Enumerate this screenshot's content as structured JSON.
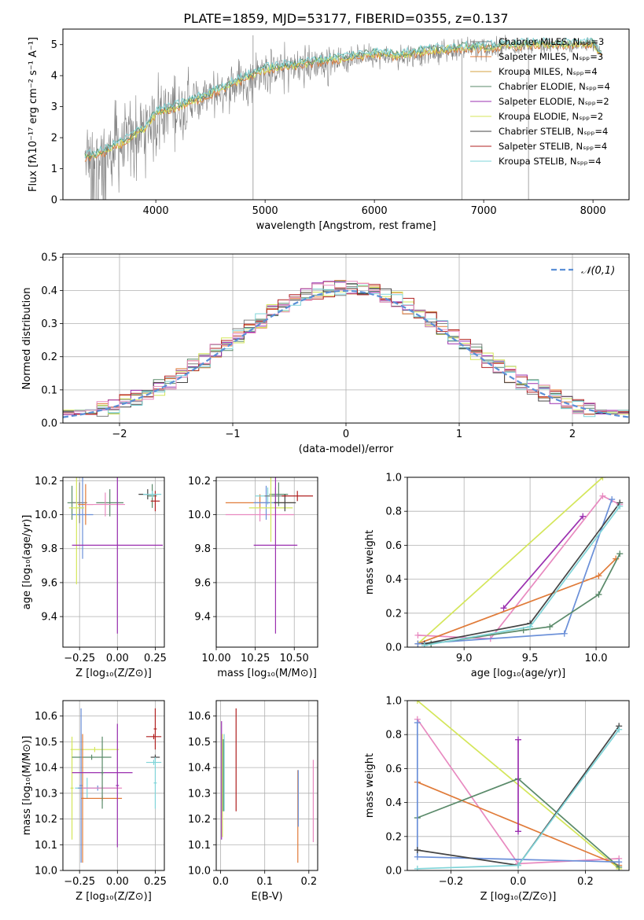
{
  "figure": {
    "title": "PLATE=1859, MJD=53177, FIBERID=0355, z=0.137"
  },
  "colors": {
    "gray": "#808080",
    "orange": "#e07b39",
    "green": "#5a8a6a",
    "blue": "#6a8fd8",
    "purple": "#9b30b0",
    "pink": "#e88ac0",
    "lime": "#d4e65a",
    "cyan": "#7fd4d8",
    "dark": "#444444",
    "red": "#b02020"
  },
  "chart_data": [
    {
      "id": "spectrum",
      "type": "line",
      "xlabel": "wavelength [Angstrom, rest frame]",
      "ylabel": "Flux [fλ10⁻¹⁷ erg cm⁻² s⁻¹ A⁻¹]",
      "xlim": [
        3150,
        8330
      ],
      "ylim": [
        0,
        5.5
      ],
      "xticks": [
        4000,
        5000,
        6000,
        7000,
        8000
      ],
      "yticks": [
        0,
        1,
        2,
        3,
        4,
        5
      ],
      "legend": [
        {
          "label": "Chabrier MILES, Nₛₚₚ=3",
          "color": "#808080"
        },
        {
          "label": "Salpeter MILES, Nₛₚₚ=3",
          "color": "#e07b39"
        },
        {
          "label": "Kroupa MILES, Nₛₚₚ=4",
          "color": "#d4a040"
        },
        {
          "label": "Chabrier ELODIE, Nₛₚₚ=4",
          "color": "#5a8a6a"
        },
        {
          "label": "Salpeter ELODIE, Nₛₚₚ=2",
          "color": "#9b30b0"
        },
        {
          "label": "Kroupa ELODIE, Nₛₚₚ=2",
          "color": "#d4e65a"
        },
        {
          "label": "Chabrier STELIB, Nₛₚₚ=4",
          "color": "#444444"
        },
        {
          "label": "Salpeter STELIB, Nₛₚₚ=4",
          "color": "#b02020"
        },
        {
          "label": "Kroupa STELIB, Nₛₚₚ=4",
          "color": "#7fd4d8"
        }
      ],
      "continuum": {
        "x": [
          3350,
          3500,
          3700,
          3900,
          4000,
          4200,
          4500,
          4800,
          5000,
          5200,
          5500,
          5800,
          6000,
          6200,
          6500,
          6800,
          7000,
          7200,
          7400,
          7600,
          7800,
          8000,
          8080
        ],
        "y": [
          1.3,
          1.45,
          1.8,
          2.25,
          2.75,
          2.95,
          3.35,
          3.85,
          4.15,
          4.25,
          4.4,
          4.55,
          4.65,
          4.6,
          4.75,
          4.85,
          4.85,
          4.9,
          4.95,
          4.95,
          4.95,
          5.0,
          4.6
        ]
      }
    },
    {
      "id": "residuals",
      "type": "line",
      "xlabel": "(data-model)/error",
      "ylabel": "Normed distribution",
      "xlim": [
        -2.5,
        2.5
      ],
      "ylim": [
        0,
        0.51
      ],
      "xticks": [
        -2,
        -1,
        0,
        1,
        2
      ],
      "yticks": [
        0.0,
        0.1,
        0.2,
        0.3,
        0.4,
        0.5
      ],
      "legend": [
        {
          "label": "𝒩(0,1)",
          "color": "#5b8fd6",
          "style": "dashed"
        }
      ],
      "histogram_bin_width": 0.1,
      "histogram_range": [
        -2.5,
        2.5
      ]
    },
    {
      "id": "age-vs-Z",
      "type": "scatter",
      "xlabel": "Z [log₁₀(Z/Z⊙)]",
      "ylabel": "age  [log₁₀(age/yr)]",
      "xlim": [
        -0.36,
        0.31
      ],
      "ylim": [
        9.22,
        10.22
      ],
      "xticks": [
        -0.25,
        0.0,
        0.25
      ],
      "yticks": [
        9.4,
        9.6,
        9.8,
        10.0,
        10.2
      ],
      "points": [
        {
          "x": -0.3,
          "y": 10.07,
          "xerr": 0.03,
          "yerr": 0.1,
          "color": "#5a8a6a"
        },
        {
          "x": -0.25,
          "y": 10.07,
          "xerr": 0.05,
          "yerr": 0.12,
          "color": "#808080"
        },
        {
          "x": -0.23,
          "y": 10.0,
          "xerr": 0.07,
          "yerr": 0.26,
          "color": "#6a8fd8"
        },
        {
          "x": -0.27,
          "y": 10.04,
          "xerr": 0.05,
          "yerr": 0.45,
          "color": "#d4e65a"
        },
        {
          "x": -0.21,
          "y": 10.06,
          "xerr": 0.05,
          "yerr": 0.12,
          "color": "#e07b39"
        },
        {
          "x": -0.05,
          "y": 10.07,
          "xerr": 0.09,
          "yerr": 0.08,
          "color": "#5a8a6a"
        },
        {
          "x": -0.08,
          "y": 10.06,
          "xerr": 0.13,
          "yerr": 0.07,
          "color": "#e88ac0"
        },
        {
          "x": 0.0,
          "y": 9.82,
          "xerr": 0.3,
          "yerr": 0.52,
          "color": "#9b30b0"
        },
        {
          "x": 0.2,
          "y": 10.12,
          "xerr": 0.06,
          "yerr": 0.03,
          "color": "#444444"
        },
        {
          "x": 0.23,
          "y": 10.11,
          "xerr": 0.03,
          "yerr": 0.07,
          "color": "#5a8a6a"
        },
        {
          "x": 0.25,
          "y": 10.08,
          "xerr": 0.03,
          "yerr": 0.06,
          "color": "#b02020"
        },
        {
          "x": 0.23,
          "y": 10.12,
          "xerr": 0.06,
          "yerr": 0.02,
          "color": "#7fd4d8"
        }
      ]
    },
    {
      "id": "age-vs-mass",
      "type": "scatter",
      "xlabel": "mass [log₁₀(M/M⊙)]",
      "ylabel": "",
      "xlim": [
        10.0,
        10.65
      ],
      "ylim": [
        9.22,
        10.22
      ],
      "xticks": [
        10.0,
        10.25,
        10.5
      ],
      "yticks": [
        9.4,
        9.6,
        9.8,
        10.0,
        10.2
      ],
      "points": [
        {
          "x": 10.28,
          "y": 10.07,
          "xerr": 0.22,
          "yerr": 0.05,
          "color": "#e07b39"
        },
        {
          "x": 10.28,
          "y": 10.0,
          "xerr": 0.22,
          "yerr": 0.04,
          "color": "#e88ac0"
        },
        {
          "x": 10.33,
          "y": 10.11,
          "xerr": 0.08,
          "yerr": 0.05,
          "color": "#7fd4d8"
        },
        {
          "x": 10.32,
          "y": 10.07,
          "xerr": 0.08,
          "yerr": 0.1,
          "color": "#6a8fd8"
        },
        {
          "x": 10.4,
          "y": 10.12,
          "xerr": 0.06,
          "yerr": 0.07,
          "color": "#5a8a6a"
        },
        {
          "x": 10.38,
          "y": 10.11,
          "xerr": 0.07,
          "yerr": 0.05,
          "color": "#808080"
        },
        {
          "x": 10.35,
          "y": 10.04,
          "xerr": 0.14,
          "yerr": 0.2,
          "color": "#d4e65a"
        },
        {
          "x": 10.38,
          "y": 9.82,
          "xerr": 0.14,
          "yerr": 0.52,
          "color": "#9b30b0"
        },
        {
          "x": 10.44,
          "y": 10.07,
          "xerr": 0.07,
          "yerr": 0.05,
          "color": "#444444"
        },
        {
          "x": 10.52,
          "y": 10.11,
          "xerr": 0.1,
          "yerr": 0.03,
          "color": "#b02020"
        }
      ]
    },
    {
      "id": "massweight-vs-age",
      "type": "line",
      "xlabel": "age  [log₁₀(age/yr)]",
      "ylabel": "mass weight",
      "xlim": [
        8.57,
        10.25
      ],
      "ylim": [
        0,
        1.0
      ],
      "xticks": [
        9.0,
        9.5,
        10.0
      ],
      "yticks": [
        0.0,
        0.2,
        0.4,
        0.6,
        0.8,
        1.0
      ],
      "series": [
        {
          "color": "#d4e65a",
          "x": [
            8.65,
            10.05
          ],
          "y": [
            0.02,
            1.0
          ]
        },
        {
          "color": "#e88ac0",
          "x": [
            8.65,
            9.2,
            10.05,
            10.18
          ],
          "y": [
            0.07,
            0.05,
            0.89,
            0.84
          ]
        },
        {
          "color": "#9b30b0",
          "x": [
            9.3,
            9.9
          ],
          "y": [
            0.23,
            0.77
          ]
        },
        {
          "color": "#e07b39",
          "x": [
            8.65,
            10.02,
            10.15
          ],
          "y": [
            0.02,
            0.42,
            0.52
          ]
        },
        {
          "color": "#6a8fd8",
          "x": [
            8.65,
            9.76,
            10.12
          ],
          "y": [
            0.02,
            0.08,
            0.87
          ]
        },
        {
          "color": "#5a8a6a",
          "x": [
            8.75,
            9.45,
            9.65,
            10.02,
            10.18
          ],
          "y": [
            0.02,
            0.1,
            0.12,
            0.31,
            0.55
          ]
        },
        {
          "color": "#444444",
          "x": [
            8.7,
            9.5,
            10.18
          ],
          "y": [
            0.02,
            0.14,
            0.85
          ]
        },
        {
          "color": "#7fd4d8",
          "x": [
            8.7,
            9.5,
            10.18
          ],
          "y": [
            0.01,
            0.12,
            0.83
          ]
        }
      ]
    },
    {
      "id": "mass-vs-Z",
      "type": "scatter",
      "xlabel": "Z [log₁₀(Z/Z⊙)]",
      "ylabel": "mass [log₁₀(M/M⊙)]",
      "xlim": [
        -0.36,
        0.31
      ],
      "ylim": [
        10.0,
        10.66
      ],
      "xticks": [
        -0.25,
        0.0,
        0.25
      ],
      "yticks": [
        10.0,
        10.1,
        10.2,
        10.3,
        10.4,
        10.5,
        10.6
      ],
      "points": [
        {
          "x": -0.3,
          "y": 10.32,
          "xerr": 0.01,
          "yerr": 0.2,
          "color": "#d4e65a"
        },
        {
          "x": -0.15,
          "y": 10.47,
          "xerr": 0.16,
          "yerr": 0.01,
          "color": "#d4e65a"
        },
        {
          "x": -0.17,
          "y": 10.44,
          "xerr": 0.13,
          "yerr": 0.01,
          "color": "#5a8a6a"
        },
        {
          "x": -0.2,
          "y": 10.32,
          "xerr": 0.08,
          "yerr": 0.04,
          "color": "#7fd4d8"
        },
        {
          "x": -0.13,
          "y": 10.32,
          "xerr": 0.13,
          "yerr": 0.01,
          "color": "#6a8fd8"
        },
        {
          "x": -0.24,
          "y": 10.33,
          "xerr": 0.01,
          "yerr": 0.3,
          "color": "#6a8fd8"
        },
        {
          "x": -0.23,
          "y": 10.28,
          "xerr": 0.01,
          "yerr": 0.25,
          "color": "#e07b39"
        },
        {
          "x": -0.1,
          "y": 10.28,
          "xerr": 0.13,
          "yerr": 0.01,
          "color": "#e07b39"
        },
        {
          "x": -0.1,
          "y": 10.32,
          "xerr": 0.13,
          "yerr": 0.01,
          "color": "#e88ac0"
        },
        {
          "x": -0.1,
          "y": 10.38,
          "xerr": 0.2,
          "yerr": 0.01,
          "color": "#9b30b0"
        },
        {
          "x": 0.0,
          "y": 10.33,
          "xerr": 0.01,
          "yerr": 0.24,
          "color": "#9b30b0"
        },
        {
          "x": -0.1,
          "y": 10.38,
          "xerr": 0.01,
          "yerr": 0.14,
          "color": "#5a8a6a"
        },
        {
          "x": 0.24,
          "y": 10.52,
          "xerr": 0.05,
          "yerr": 0.01,
          "color": "#b02020"
        },
        {
          "x": 0.25,
          "y": 10.55,
          "xerr": 0.01,
          "yerr": 0.08,
          "color": "#b02020"
        },
        {
          "x": 0.25,
          "y": 10.44,
          "xerr": 0.03,
          "yerr": 0.01,
          "color": "#444444"
        },
        {
          "x": 0.24,
          "y": 10.42,
          "xerr": 0.05,
          "yerr": 0.01,
          "color": "#7fd4d8"
        },
        {
          "x": 0.25,
          "y": 10.34,
          "xerr": 0.01,
          "yerr": 0.1,
          "color": "#7fd4d8"
        }
      ]
    },
    {
      "id": "mass-vs-EBV",
      "type": "scatter",
      "xlabel": "E(B-V)",
      "ylabel": "",
      "xlim": [
        -0.01,
        0.22
      ],
      "ylim": [
        10.0,
        10.66
      ],
      "xticks": [
        0.0,
        0.1,
        0.2
      ],
      "yticks": [
        10.0,
        10.1,
        10.2,
        10.3,
        10.4,
        10.5,
        10.6
      ],
      "points": [
        {
          "x": 0.002,
          "y": 10.35,
          "yerr": 0.23,
          "color": "#9b30b0"
        },
        {
          "x": 0.004,
          "y": 10.33,
          "yerr": 0.2,
          "color": "#d4e65a"
        },
        {
          "x": 0.006,
          "y": 10.37,
          "yerr": 0.14,
          "color": "#5a8a6a"
        },
        {
          "x": 0.008,
          "y": 10.38,
          "yerr": 0.15,
          "color": "#7fd4d8"
        },
        {
          "x": 0.035,
          "y": 10.43,
          "yerr": 0.2,
          "color": "#b02020"
        },
        {
          "x": 0.175,
          "y": 10.21,
          "yerr": 0.18,
          "color": "#e07b39"
        },
        {
          "x": 0.176,
          "y": 10.28,
          "yerr": 0.11,
          "color": "#6a8fd8"
        },
        {
          "x": 0.21,
          "y": 10.27,
          "yerr": 0.16,
          "color": "#e88ac0"
        }
      ]
    },
    {
      "id": "massweight-vs-Z",
      "type": "line",
      "xlabel": "Z [log₁₀(Z/Z⊙)]",
      "ylabel": "mass weight",
      "xlim": [
        -0.33,
        0.33
      ],
      "ylim": [
        0,
        1.0
      ],
      "xticks": [
        -0.2,
        0.0,
        0.2
      ],
      "yticks": [
        0.0,
        0.2,
        0.4,
        0.6,
        0.8,
        1.0
      ],
      "series": [
        {
          "color": "#d4e65a",
          "x": [
            -0.3,
            0.3
          ],
          "y": [
            1.0,
            0.01
          ]
        },
        {
          "color": "#e88ac0",
          "x": [
            -0.3,
            0.0,
            0.3
          ],
          "y": [
            0.89,
            0.04,
            0.07
          ]
        },
        {
          "color": "#e07b39",
          "x": [
            -0.3,
            0.3
          ],
          "y": [
            0.52,
            0.03
          ]
        },
        {
          "color": "#5a8a6a",
          "x": [
            -0.3,
            0.0,
            0.3
          ],
          "y": [
            0.31,
            0.54,
            0.02
          ]
        },
        {
          "color": "#6a8fd8",
          "x": [
            -0.3,
            -0.3,
            0.3
          ],
          "y": [
            0.87,
            0.08,
            0.05
          ]
        },
        {
          "color": "#9b30b0",
          "x": [
            0.0,
            0.0
          ],
          "y": [
            0.23,
            0.77
          ]
        },
        {
          "color": "#444444",
          "x": [
            -0.3,
            0.0,
            0.3
          ],
          "y": [
            0.12,
            0.03,
            0.85
          ]
        },
        {
          "color": "#7fd4d8",
          "x": [
            -0.3,
            0.0,
            0.3
          ],
          "y": [
            0.01,
            0.03,
            0.83
          ]
        }
      ]
    }
  ]
}
